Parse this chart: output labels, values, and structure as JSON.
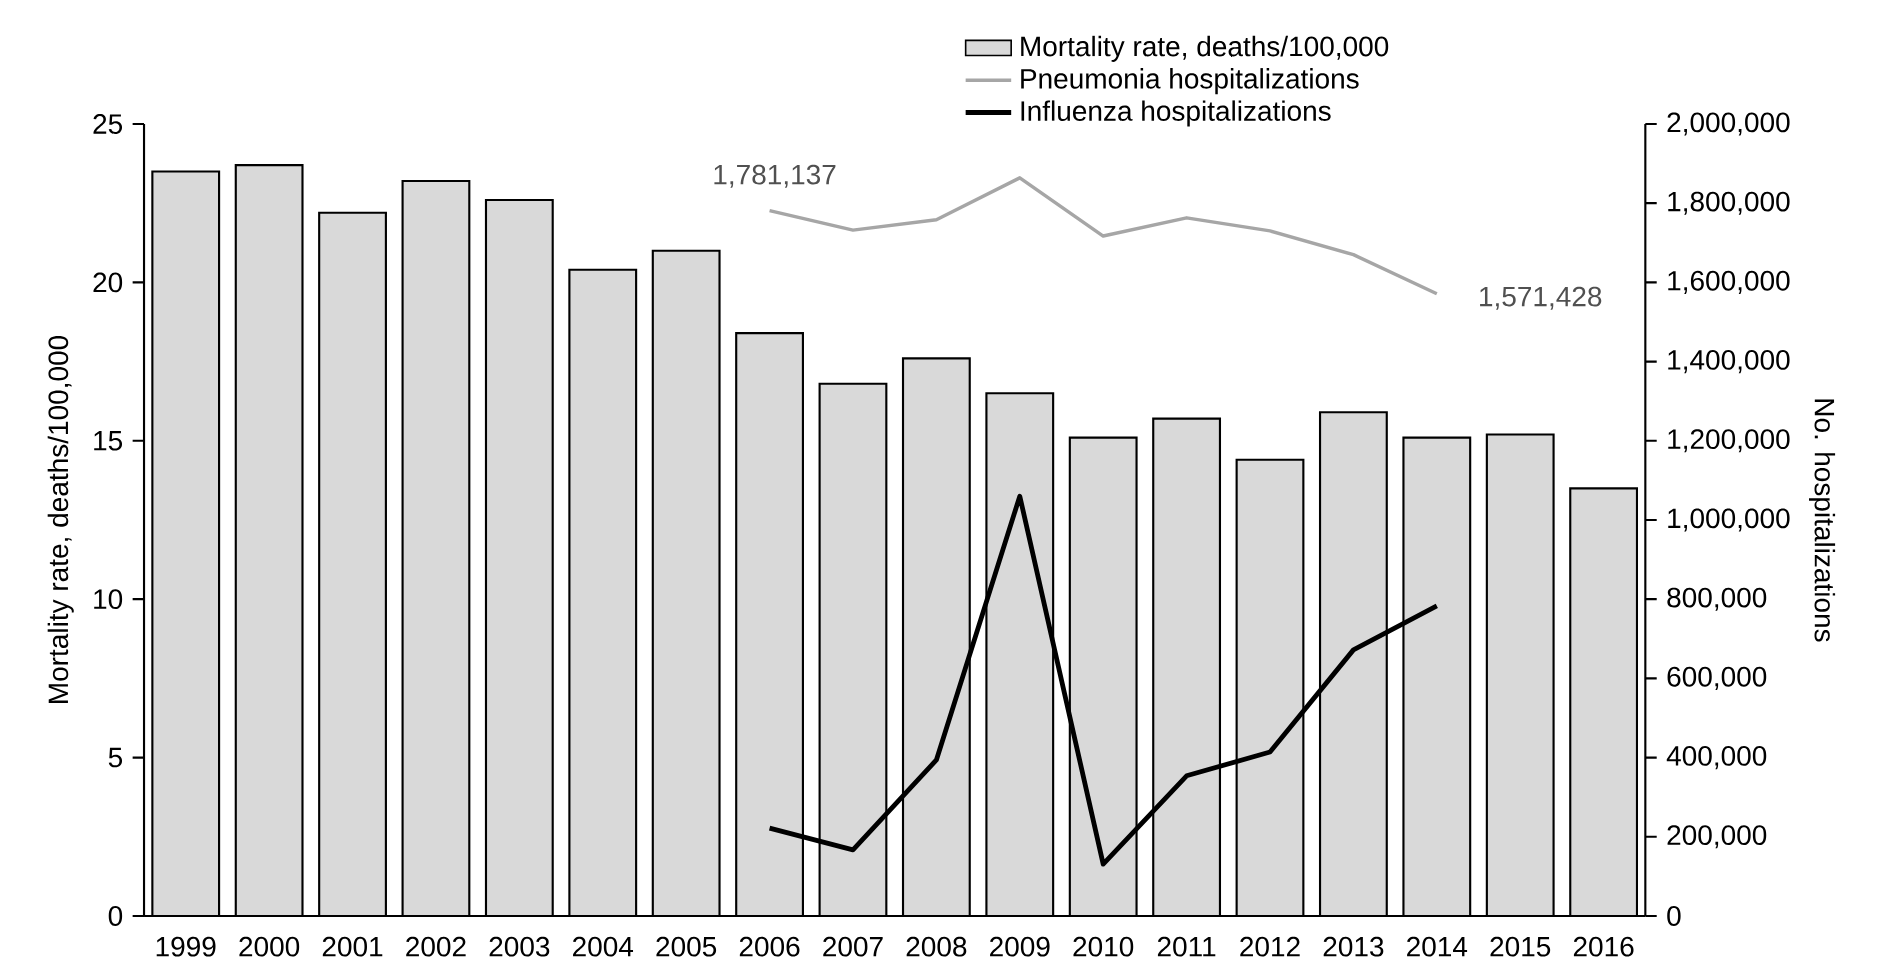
{
  "chart_data": {
    "type": "bar",
    "categories": [
      "1999",
      "2000",
      "2001",
      "2002",
      "2003",
      "2004",
      "2005",
      "2006",
      "2007",
      "2008",
      "2009",
      "2010",
      "2011",
      "2012",
      "2013",
      "2014",
      "2015",
      "2016"
    ],
    "series": [
      {
        "name": "Mortality rate, deaths/100,000",
        "color": "#d9d9d9",
        "values": [
          23.5,
          23.7,
          22.2,
          23.2,
          22.6,
          20.4,
          21.0,
          18.4,
          16.8,
          17.6,
          16.5,
          15.1,
          15.7,
          14.4,
          15.9,
          15.1,
          15.2,
          13.5
        ]
      },
      {
        "name": "Pneumonia hospitalizations",
        "type": "line",
        "axis": "y2",
        "color": "#a6a6a6",
        "values": [
          null,
          null,
          null,
          null,
          null,
          null,
          null,
          1781137,
          1732000,
          1758000,
          1864000,
          1717000,
          1763000,
          1730000,
          1670000,
          1571428,
          null,
          null
        ]
      },
      {
        "name": "Influenza hospitalizations",
        "type": "line",
        "axis": "y2",
        "color": "#000000",
        "values": [
          null,
          null,
          null,
          null,
          null,
          null,
          null,
          222000,
          167000,
          394000,
          1060000,
          131000,
          354000,
          414000,
          672000,
          783000,
          null,
          null
        ]
      }
    ],
    "ylabel": "Mortality rate, deaths/100,000",
    "y2label": "No. hospitalizations",
    "ylim": [
      0,
      25
    ],
    "yticks": [
      0,
      5,
      10,
      15,
      20,
      25
    ],
    "y2lim": [
      0,
      2000000
    ],
    "y2ticks": [
      0,
      {
        "value": 200000,
        "label": "200,000"
      },
      {
        "value": 400000,
        "label": "400,000"
      },
      {
        "value": 600000,
        "label": "600,000"
      },
      {
        "value": 800000,
        "label": "800,000"
      },
      {
        "value": 1000000,
        "label": "1,000,000"
      },
      {
        "value": 1200000,
        "label": "1,200,000"
      },
      {
        "value": 1400000,
        "label": "1,400,000"
      },
      {
        "value": 1600000,
        "label": "1,600,000"
      },
      {
        "value": 1800000,
        "label": "1,800,000"
      },
      {
        "value": 2000000,
        "label": "2,000,000"
      }
    ],
    "annotations": [
      "1,781,137",
      "1,571,428"
    ],
    "legend": "top",
    "grid": false
  }
}
